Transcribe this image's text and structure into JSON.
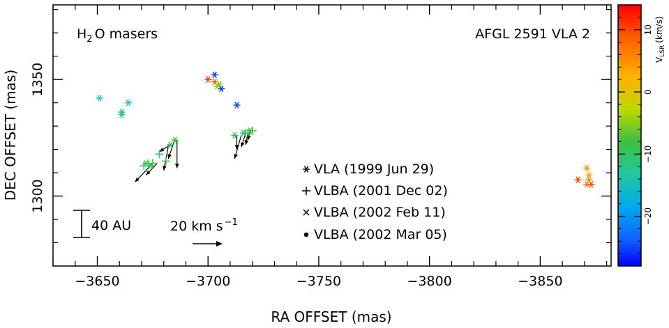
{
  "chart_data": {
    "type": "scatter",
    "xlabel": "RA OFFSET (mas)",
    "ylabel": "DEC OFFSET (mas)",
    "xlim": [
      -3630,
      -3882
    ],
    "ylim": [
      1270,
      1382
    ],
    "x_ticks": [
      -3650,
      -3700,
      -3750,
      -3800,
      -3850
    ],
    "x_tick_labels": [
      "−3650",
      "−3700",
      "−3750",
      "−3800",
      "−3850"
    ],
    "y_ticks": [
      1300,
      1350
    ],
    "y_tick_labels": [
      "1300",
      "1350"
    ],
    "annotation_left": {
      "pre": "H",
      "sub": "2",
      "post": "O masers"
    },
    "annotation_right": "AFGL 2591 VLA 2",
    "legend": [
      {
        "marker": "asterisk",
        "label": "VLA (1999 Jun 29)"
      },
      {
        "marker": "plus",
        "label": "VLBA (2001 Dec 02)"
      },
      {
        "marker": "cross",
        "label": "VLBA (2002 Feb 11)"
      },
      {
        "marker": "dot",
        "label": "VLBA (2002 Mar 05)"
      }
    ],
    "scale_bar": {
      "label": "40 AU",
      "length_mas": 12
    },
    "velocity_scale": {
      "value": "20",
      "unit": "km s",
      "exponent": "−1"
    },
    "colorbar": {
      "label": "V",
      "label_sub": "LSR",
      "label_unit": "(km/s)",
      "range": [
        -28,
        14
      ],
      "ticks": [
        10,
        0,
        -10,
        -20
      ],
      "tick_labels": [
        "10",
        "0",
        "−10",
        "−20"
      ]
    },
    "points": [
      {
        "x": -3651,
        "y": 1342,
        "v": -14,
        "m": "asterisk"
      },
      {
        "x": -3661,
        "y": 1336,
        "v": -11,
        "m": "asterisk"
      },
      {
        "x": -3661,
        "y": 1335,
        "v": -11,
        "m": "asterisk"
      },
      {
        "x": -3664,
        "y": 1340,
        "v": -14,
        "m": "asterisk"
      },
      {
        "x": -3700,
        "y": 1350,
        "v": 11,
        "m": "asterisk"
      },
      {
        "x": -3703,
        "y": 1352,
        "v": -26,
        "m": "asterisk"
      },
      {
        "x": -3703,
        "y": 1349,
        "v": 9,
        "m": "asterisk"
      },
      {
        "x": -3704,
        "y": 1347,
        "v": -4,
        "m": "asterisk"
      },
      {
        "x": -3705,
        "y": 1348,
        "v": -6,
        "m": "asterisk"
      },
      {
        "x": -3706,
        "y": 1346,
        "v": -26,
        "m": "asterisk"
      },
      {
        "x": -3713,
        "y": 1339,
        "v": -25,
        "m": "asterisk"
      },
      {
        "x": -3712,
        "y": 1326,
        "v": -9,
        "m": "asterisk"
      },
      {
        "x": -3716,
        "y": 1327,
        "v": -9,
        "m": "asterisk"
      },
      {
        "x": -3719,
        "y": 1328,
        "v": -8,
        "m": "asterisk"
      },
      {
        "x": -3717,
        "y": 1327,
        "v": -10,
        "m": "plus"
      },
      {
        "x": -3720,
        "y": 1328,
        "v": -8,
        "m": "plus"
      },
      {
        "x": -3718,
        "y": 1327,
        "v": -9,
        "m": "plus"
      },
      {
        "x": -3671,
        "y": 1313,
        "v": -10,
        "m": "plus"
      },
      {
        "x": -3673,
        "y": 1314,
        "v": -9,
        "m": "plus"
      },
      {
        "x": -3675,
        "y": 1314,
        "v": -8,
        "m": "plus"
      },
      {
        "x": -3678,
        "y": 1318,
        "v": -11,
        "m": "plus"
      },
      {
        "x": -3681,
        "y": 1315,
        "v": -8,
        "m": "plus"
      },
      {
        "x": -3683,
        "y": 1322,
        "v": -9,
        "m": "asterisk"
      },
      {
        "x": -3685,
        "y": 1324,
        "v": -8,
        "m": "asterisk"
      },
      {
        "x": -3672,
        "y": 1314,
        "v": -9,
        "m": "asterisk"
      },
      {
        "x": -3674,
        "y": 1313,
        "v": -9,
        "m": "asterisk"
      },
      {
        "x": -3867,
        "y": 1307,
        "v": 10,
        "m": "asterisk"
      },
      {
        "x": -3871,
        "y": 1312,
        "v": 5,
        "m": "asterisk"
      },
      {
        "x": -3872,
        "y": 1309,
        "v": 4,
        "m": "asterisk"
      },
      {
        "x": -3872,
        "y": 1307,
        "v": 6,
        "m": "asterisk"
      },
      {
        "x": -3871,
        "y": 1305,
        "v": 7,
        "m": "asterisk"
      },
      {
        "x": -3873,
        "y": 1305,
        "v": 10,
        "m": "asterisk"
      }
    ],
    "motion_vectors": [
      {
        "x": -3675,
        "y": 1314,
        "dx": 8,
        "dy": -8
      },
      {
        "x": -3677,
        "y": 1314,
        "dx": 5,
        "dy": -5
      },
      {
        "x": -3682,
        "y": 1321,
        "dx": 2,
        "dy": -10
      },
      {
        "x": -3683,
        "y": 1322,
        "dx": 5,
        "dy": -3
      },
      {
        "x": -3685,
        "y": 1324,
        "dx": 3,
        "dy": -8
      },
      {
        "x": -3686,
        "y": 1324,
        "dx": 0,
        "dy": -12
      },
      {
        "x": -3713,
        "y": 1326,
        "dx": 0,
        "dy": -6
      },
      {
        "x": -3715,
        "y": 1326,
        "dx": 3,
        "dy": -10
      },
      {
        "x": -3717,
        "y": 1327,
        "dx": 2,
        "dy": -6
      },
      {
        "x": -3718,
        "y": 1327,
        "dx": 1,
        "dy": -5
      },
      {
        "x": -3719,
        "y": 1328,
        "dx": 1,
        "dy": -4
      }
    ]
  }
}
